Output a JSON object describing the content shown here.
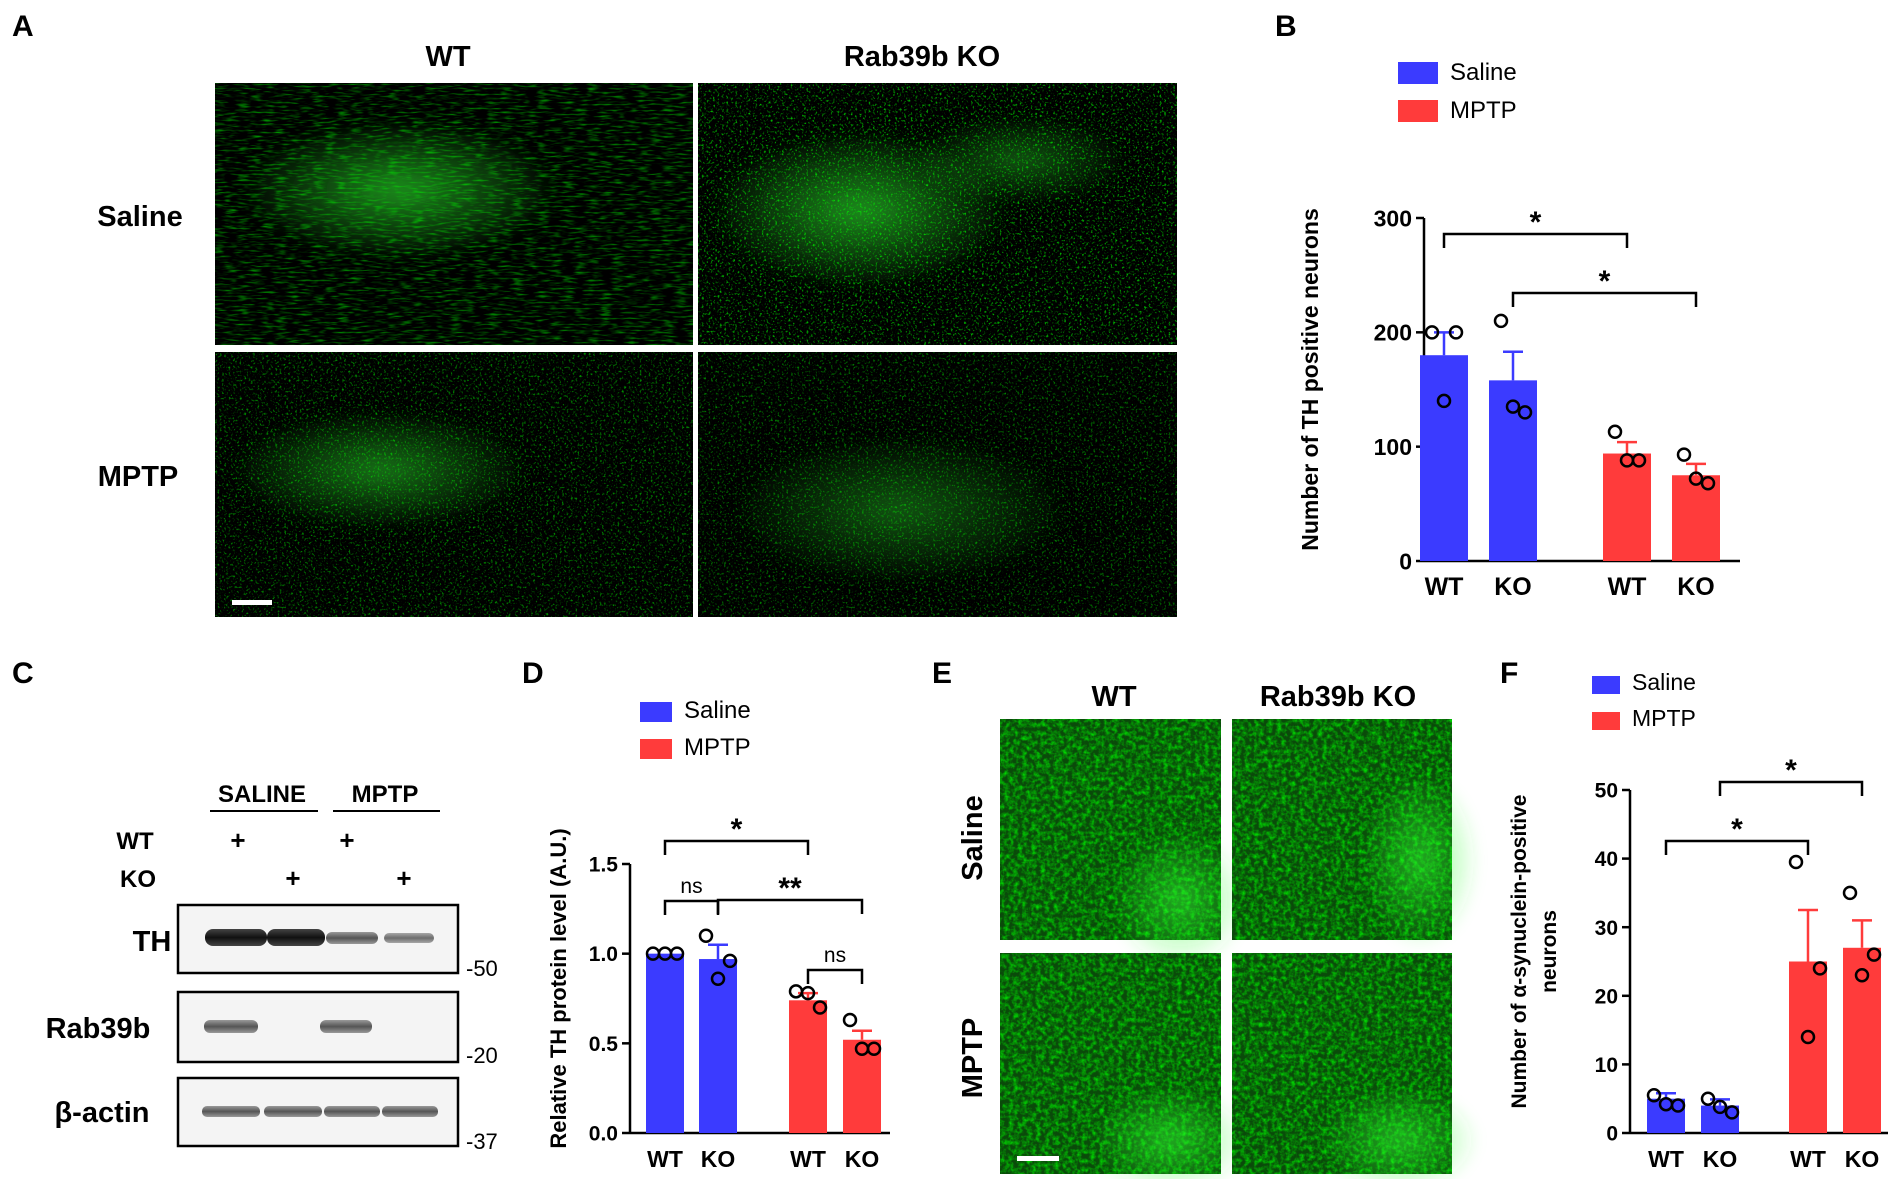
{
  "panels": {
    "A": {
      "letter": "A",
      "col_labels": [
        "WT",
        "Rab39b KO"
      ],
      "row_labels": [
        "Saline",
        "MPTP"
      ]
    },
    "C": {
      "letter": "C",
      "group_labels": [
        "SALINE",
        "MPTP"
      ],
      "row_WT": "WT",
      "row_KO": "KO",
      "plus": "+",
      "blot_labels": [
        "TH",
        "Rab39b",
        "β-actin"
      ],
      "markers": [
        "-50",
        "-20",
        "-37"
      ]
    },
    "E": {
      "letter": "E",
      "col_labels": [
        "WT",
        "Rab39b KO"
      ],
      "row_labels": [
        "Saline",
        "MPTP"
      ]
    }
  },
  "chart_data": [
    {
      "panel": "B",
      "type": "bar",
      "ylabel": "Number of TH positive neurons",
      "ylim": [
        0,
        300
      ],
      "yticks": [
        0,
        100,
        200,
        300
      ],
      "categories": [
        "WT",
        "KO",
        "WT",
        "KO"
      ],
      "legend": [
        "Saline",
        "MPTP"
      ],
      "colors": {
        "Saline": "#3b3bff",
        "MPTP": "#ff3b3b"
      },
      "values": [
        180,
        158,
        94,
        75
      ],
      "errors": [
        20,
        25,
        10,
        10
      ],
      "points": [
        [
          200,
          200,
          140
        ],
        [
          210,
          130,
          135
        ],
        [
          113,
          88,
          88
        ],
        [
          93,
          68,
          72
        ]
      ],
      "groups": [
        "Saline",
        "Saline",
        "MPTP",
        "MPTP"
      ],
      "annotations": [
        {
          "from": 0,
          "to": 2,
          "label": "*"
        },
        {
          "from": 1,
          "to": 3,
          "label": "*"
        }
      ]
    },
    {
      "panel": "D",
      "type": "bar",
      "ylabel": "Relative TH protein level (A.U.)",
      "ylim": [
        0,
        1.5
      ],
      "yticks": [
        "0.0",
        "0.5",
        "1.0",
        "1.5"
      ],
      "categories": [
        "WT",
        "KO",
        "WT",
        "KO"
      ],
      "legend": [
        "Saline",
        "MPTP"
      ],
      "colors": {
        "Saline": "#3b3bff",
        "MPTP": "#ff3b3b"
      },
      "values": [
        1.0,
        0.97,
        0.74,
        0.52
      ],
      "errors": [
        0,
        0.08,
        0.04,
        0.05
      ],
      "points": [
        [
          1.0,
          1.0,
          1.0
        ],
        [
          1.1,
          0.96,
          0.86
        ],
        [
          0.79,
          0.7,
          0.78
        ],
        [
          0.63,
          0.47,
          0.47
        ]
      ],
      "groups": [
        "Saline",
        "Saline",
        "MPTP",
        "MPTP"
      ],
      "annotations": [
        {
          "from": 0,
          "to": 1,
          "label": "ns"
        },
        {
          "from": 2,
          "to": 3,
          "label": "ns"
        },
        {
          "from": 1,
          "to": 3,
          "label": "**"
        },
        {
          "from": 0,
          "to": 2,
          "label": "*"
        }
      ]
    },
    {
      "panel": "F",
      "type": "bar",
      "ylabel": "Number of α-synuclein-positive neurons",
      "ylim": [
        0,
        50
      ],
      "yticks": [
        0,
        10,
        20,
        30,
        40,
        50
      ],
      "categories": [
        "WT",
        "KO",
        "WT",
        "KO"
      ],
      "legend": [
        "Saline",
        "MPTP"
      ],
      "colors": {
        "Saline": "#3b3bff",
        "MPTP": "#ff3b3b"
      },
      "values": [
        5,
        4,
        25,
        27
      ],
      "errors": [
        0.8,
        0.9,
        7.5,
        4
      ],
      "points": [
        [
          5.5,
          4,
          4.2
        ],
        [
          5,
          3,
          3.8
        ],
        [
          39.5,
          24,
          14
        ],
        [
          35,
          26,
          23
        ]
      ],
      "groups": [
        "Saline",
        "Saline",
        "MPTP",
        "MPTP"
      ],
      "annotations": [
        {
          "from": 0,
          "to": 2,
          "label": "*"
        },
        {
          "from": 1,
          "to": 3,
          "label": "*"
        }
      ]
    }
  ]
}
